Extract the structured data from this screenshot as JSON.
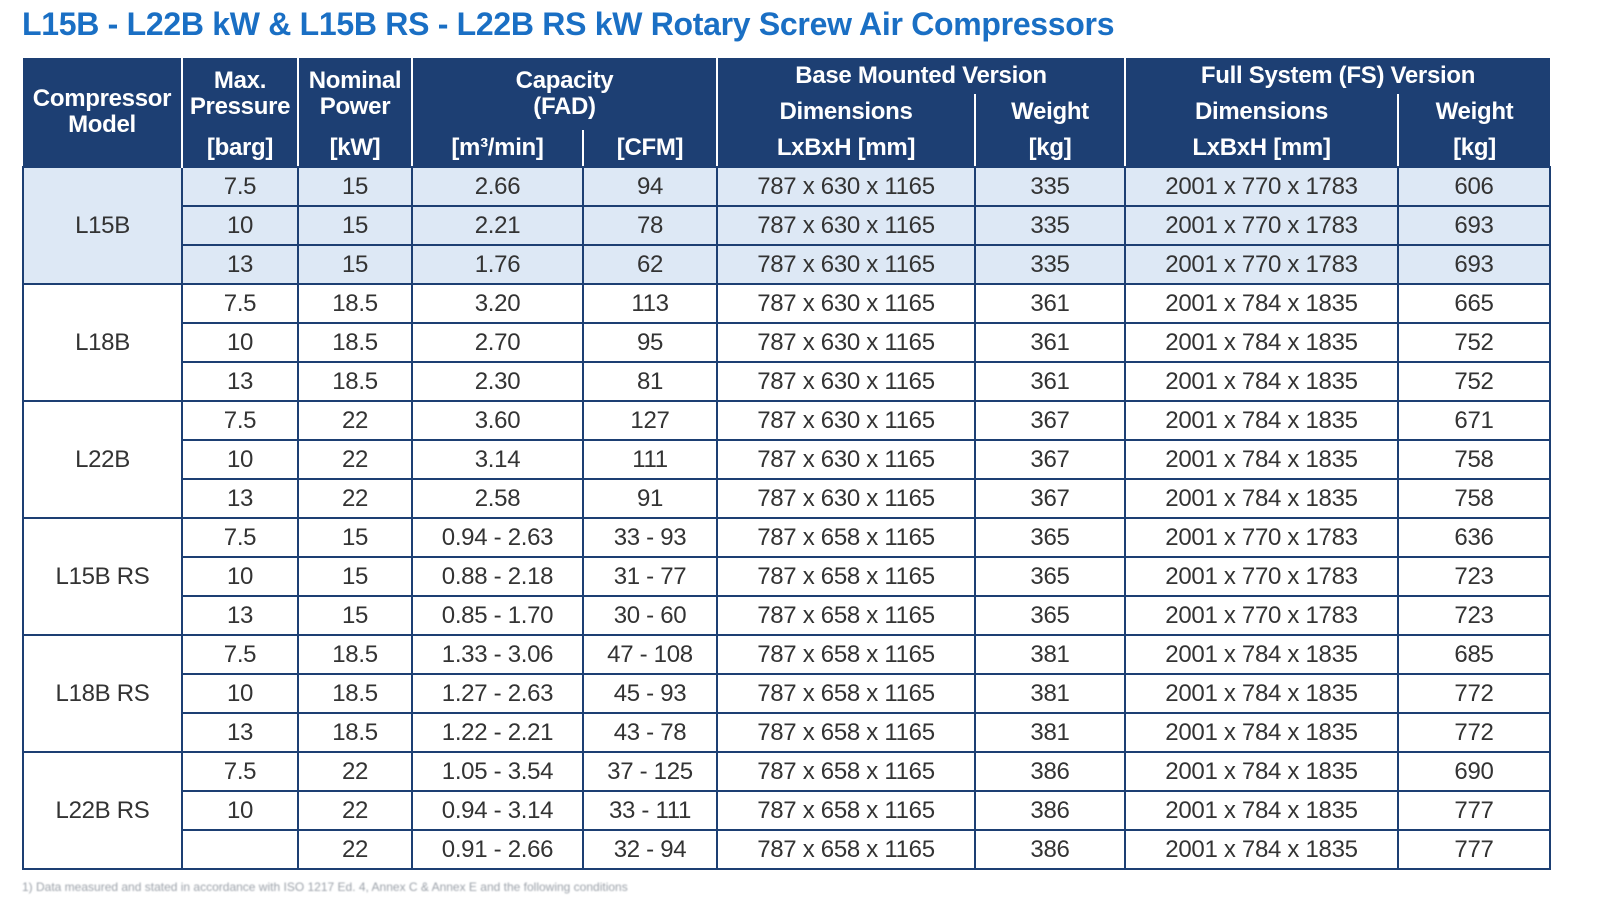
{
  "title": "L15B - L22B kW & L15B RS - L22B RS kW Rotary Screw Air Compressors",
  "header": {
    "compressor_model": [
      "Compressor",
      "Model"
    ],
    "max_pressure": [
      "Max.",
      "Pressure",
      "[barg]"
    ],
    "nominal_power": [
      "Nominal",
      "Power",
      "[kW]"
    ],
    "capacity": [
      "Capacity",
      "(FAD)"
    ],
    "capacity_unit_m3": "[m³/min]",
    "capacity_unit_cfm": "[CFM]",
    "base_mounted": "Base Mounted Version",
    "full_system": "Full System (FS) Version",
    "dimensions": "Dimensions",
    "dimensions_unit": "LxBxH [mm]",
    "weight": "Weight",
    "weight_unit": "[kg]"
  },
  "groups": [
    {
      "model": "L15B",
      "shaded": true,
      "rows": [
        [
          "7.5",
          "15",
          "2.66",
          "94",
          "787 x 630 x 1165",
          "335",
          "2001 x 770 x 1783",
          "606"
        ],
        [
          "10",
          "15",
          "2.21",
          "78",
          "787 x 630 x 1165",
          "335",
          "2001 x 770 x 1783",
          "693"
        ],
        [
          "13",
          "15",
          "1.76",
          "62",
          "787 x 630 x 1165",
          "335",
          "2001 x 770 x 1783",
          "693"
        ]
      ]
    },
    {
      "model": "L18B",
      "shaded": false,
      "rows": [
        [
          "7.5",
          "18.5",
          "3.20",
          "113",
          "787 x 630 x 1165",
          "361",
          "2001 x 784 x 1835",
          "665"
        ],
        [
          "10",
          "18.5",
          "2.70",
          "95",
          "787 x 630 x 1165",
          "361",
          "2001 x 784 x 1835",
          "752"
        ],
        [
          "13",
          "18.5",
          "2.30",
          "81",
          "787 x 630 x 1165",
          "361",
          "2001 x 784 x 1835",
          "752"
        ]
      ]
    },
    {
      "model": "L22B",
      "shaded": false,
      "rows": [
        [
          "7.5",
          "22",
          "3.60",
          "127",
          "787 x 630 x 1165",
          "367",
          "2001 x 784 x 1835",
          "671"
        ],
        [
          "10",
          "22",
          "3.14",
          "111",
          "787 x 630 x 1165",
          "367",
          "2001 x 784 x 1835",
          "758"
        ],
        [
          "13",
          "22",
          "2.58",
          "91",
          "787 x 630 x 1165",
          "367",
          "2001 x 784 x 1835",
          "758"
        ]
      ]
    },
    {
      "model": "L15B RS",
      "shaded": false,
      "rows": [
        [
          "7.5",
          "15",
          "0.94 - 2.63",
          "33 - 93",
          "787 x 658 x 1165",
          "365",
          "2001 x 770 x 1783",
          "636"
        ],
        [
          "10",
          "15",
          "0.88 - 2.18",
          "31 - 77",
          "787 x 658 x 1165",
          "365",
          "2001 x 770 x 1783",
          "723"
        ],
        [
          "13",
          "15",
          "0.85 - 1.70",
          "30 - 60",
          "787 x 658 x 1165",
          "365",
          "2001 x 770 x 1783",
          "723"
        ]
      ]
    },
    {
      "model": "L18B RS",
      "shaded": false,
      "rows": [
        [
          "7.5",
          "18.5",
          "1.33 - 3.06",
          "47 - 108",
          "787 x 658 x 1165",
          "381",
          "2001 x 784 x 1835",
          "685"
        ],
        [
          "10",
          "18.5",
          "1.27 - 2.63",
          "45 - 93",
          "787 x 658 x 1165",
          "381",
          "2001 x 784 x 1835",
          "772"
        ],
        [
          "13",
          "18.5",
          "1.22 - 2.21",
          "43 - 78",
          "787 x 658 x 1165",
          "381",
          "2001 x 784 x 1835",
          "772"
        ]
      ]
    },
    {
      "model": "L22B RS",
      "shaded": false,
      "rows": [
        [
          "7.5",
          "22",
          "1.05 - 3.54",
          "37 - 125",
          "787 x 658 x 1165",
          "386",
          "2001 x 784 x 1835",
          "690"
        ],
        [
          "10",
          "22",
          "0.94 - 3.14",
          "33 - 111",
          "787 x 658 x 1165",
          "386",
          "2001 x 784 x 1835",
          "777"
        ],
        [
          "",
          "22",
          "0.91 - 2.66",
          "32 - 94",
          "787 x 658 x 1165",
          "386",
          "2001 x 784 x 1835",
          "777"
        ]
      ]
    }
  ],
  "footnote": "1) Data measured and stated in accordance with ISO 1217 Ed. 4, Annex C & Annex E and the following conditions"
}
